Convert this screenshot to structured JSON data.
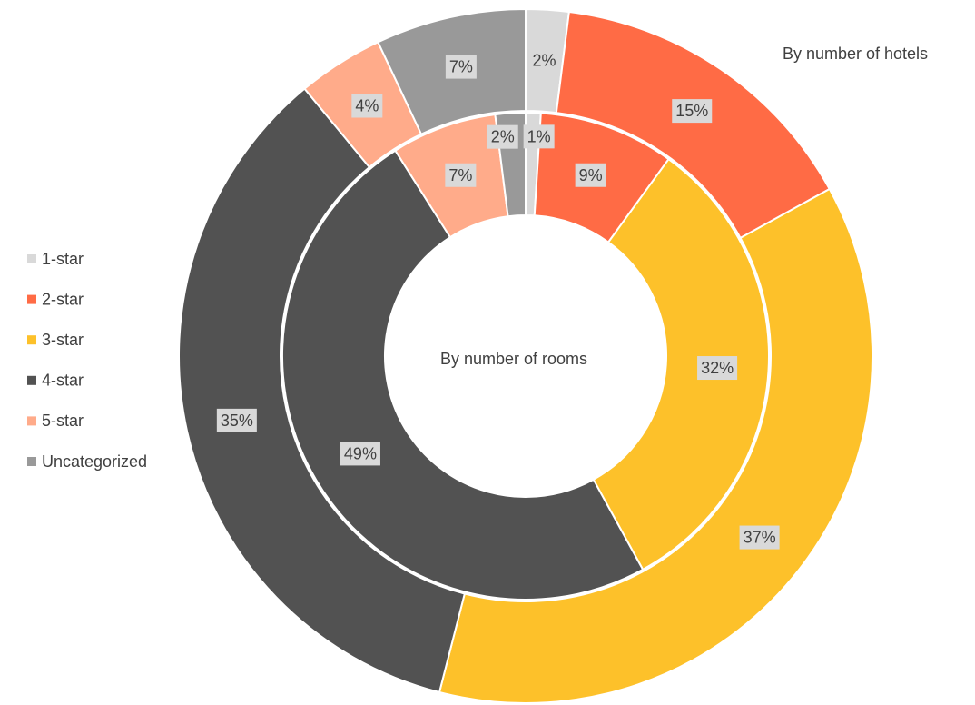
{
  "chart_data": {
    "type": "donut",
    "categories": [
      "1-star",
      "2-star",
      "3-star",
      "4-star",
      "5-star",
      "Uncategorized"
    ],
    "colors": [
      "#d9d9d9",
      "#ff6b45",
      "#fdc12a",
      "#525252",
      "#ffab8a",
      "#999999"
    ],
    "legend": "left",
    "series": [
      {
        "name": "By number of hotels",
        "values": [
          2,
          15,
          37,
          35,
          4,
          7
        ],
        "value_labels": [
          "2%",
          "15%",
          "37%",
          "35%",
          "4%",
          "7%"
        ]
      },
      {
        "name": "By number of rooms",
        "values": [
          1,
          9,
          32,
          49,
          7,
          2
        ],
        "value_labels": [
          "1%",
          "9%",
          "32%",
          "49%",
          "7%",
          "2%"
        ]
      }
    ]
  }
}
